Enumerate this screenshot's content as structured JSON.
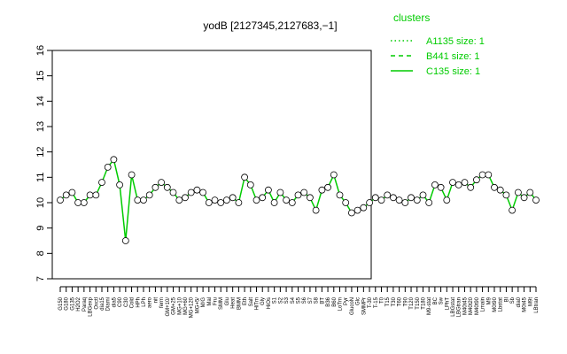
{
  "chart_data": {
    "type": "line",
    "title": "yodB [2127345,2127683,−1]",
    "xlabel": "",
    "ylabel": "",
    "ylim": [
      7,
      16
    ],
    "yticks": [
      7,
      8,
      9,
      10,
      11,
      12,
      13,
      14,
      15,
      16
    ],
    "grid": false,
    "legend": {
      "title": "clusters",
      "placement": "top-right",
      "entries": [
        {
          "label": "A1135 size: 1",
          "style": "dotted"
        },
        {
          "label": "B441 size: 1",
          "style": "dashed"
        },
        {
          "label": "C135 size: 1",
          "style": "solid"
        }
      ]
    },
    "line_color": "#00cc00",
    "x_tick_labels": [
      "G150",
      "G180",
      "G135",
      "H2O2",
      "Paraq",
      "LBGexp",
      "Oxctl",
      "dia15",
      "Diami",
      "dia5",
      "C90",
      "C30",
      "Cold",
      "HPh",
      "LPh",
      "aero",
      "nit",
      "ferm",
      "GM+10/",
      "GM+25",
      "MG+10",
      "MG+60",
      "MG+120",
      "MG+5/",
      "M/G",
      "Mal",
      "Fru",
      "SMM",
      "Glu",
      "Heat",
      "BMM",
      "Eth",
      "Salt",
      "HiTm",
      "Gly",
      "HiOs",
      "S1",
      "S2",
      "S3",
      "S4",
      "S5",
      "S6",
      "S7",
      "S8",
      "BT",
      "B36",
      "B60",
      "LoTm",
      "Pyr",
      "GlucoN",
      "Glc",
      "SMMPr",
      "T-30",
      "T-15",
      "T0",
      "T15",
      "T30",
      "T60",
      "T90",
      "T120",
      "T150",
      "T180",
      "M9-stat",
      "BC",
      "Sw",
      "LPhT",
      "LBGstat",
      "LBGtran",
      "M40t45",
      "M40t20",
      "M40t90",
      "Lmain",
      "M9",
      "M0t90",
      "Lbstat",
      "Bl",
      "Sb",
      "dia0",
      "M0t45",
      "M9t",
      "LBtran"
    ],
    "points": [
      {
        "label": "G150",
        "value": 10.1
      },
      {
        "label": "G180",
        "value": 10.3
      },
      {
        "label": "G135",
        "value": 10.4
      },
      {
        "label": "H2O2",
        "value": 10.0
      },
      {
        "label": "Paraq",
        "value": 10.0
      },
      {
        "label": "LBGexp",
        "value": 10.3
      },
      {
        "label": "Oxctl",
        "value": 10.3
      },
      {
        "label": "dia15",
        "value": 10.8
      },
      {
        "label": "Diami",
        "value": 11.4
      },
      {
        "label": "dia5",
        "value": 11.7
      },
      {
        "label": "C90",
        "value": 10.7
      },
      {
        "label": "C30",
        "value": 8.5
      },
      {
        "label": "Cold",
        "value": 11.1
      },
      {
        "label": "HPh",
        "value": 10.1
      },
      {
        "label": "LPh",
        "value": 10.1
      },
      {
        "label": "aero",
        "value": 10.3
      },
      {
        "label": "nit",
        "value": 10.6
      },
      {
        "label": "ferm",
        "value": 10.8
      },
      {
        "label": "GM+10/",
        "value": 10.6
      },
      {
        "label": "GM+25",
        "value": 10.4
      },
      {
        "label": "MG+10",
        "value": 10.1
      },
      {
        "label": "MG+60",
        "value": 10.2
      },
      {
        "label": "MG+120",
        "value": 10.4
      },
      {
        "label": "MG+5/",
        "value": 10.5
      },
      {
        "label": "M/G",
        "value": 10.4
      },
      {
        "label": "Mal",
        "value": 10.0
      },
      {
        "label": "Fru",
        "value": 10.1
      },
      {
        "label": "SMM",
        "value": 10.0
      },
      {
        "label": "Glu",
        "value": 10.1
      },
      {
        "label": "Heat",
        "value": 10.2
      },
      {
        "label": "BMM",
        "value": 10.0
      },
      {
        "label": "Eth",
        "value": 11.0
      },
      {
        "label": "Salt",
        "value": 10.7
      },
      {
        "label": "HiTm",
        "value": 10.1
      },
      {
        "label": "Gly",
        "value": 10.2
      },
      {
        "label": "HiOs",
        "value": 10.5
      },
      {
        "label": "S1",
        "value": 10.0
      },
      {
        "label": "S2",
        "value": 10.4
      },
      {
        "label": "S3",
        "value": 10.1
      },
      {
        "label": "S4",
        "value": 10.0
      },
      {
        "label": "S5",
        "value": 10.3
      },
      {
        "label": "S6",
        "value": 10.4
      },
      {
        "label": "S7",
        "value": 10.2
      },
      {
        "label": "S8",
        "value": 9.7
      },
      {
        "label": "BT",
        "value": 10.5
      },
      {
        "label": "B36",
        "value": 10.6
      },
      {
        "label": "B60",
        "value": 11.1
      },
      {
        "label": "LoTm",
        "value": 10.3
      },
      {
        "label": "Pyr",
        "value": 10.0
      },
      {
        "label": "GlucoN",
        "value": 9.6
      },
      {
        "label": "Glc",
        "value": 9.7
      },
      {
        "label": "SMMPr",
        "value": 9.8
      },
      {
        "label": "T-30",
        "value": 10.0
      },
      {
        "label": "T-15",
        "value": 10.2
      },
      {
        "label": "T0",
        "value": 10.1
      },
      {
        "label": "T15",
        "value": 10.3
      },
      {
        "label": "T30",
        "value": 10.2
      },
      {
        "label": "T60",
        "value": 10.1
      },
      {
        "label": "T90",
        "value": 10.0
      },
      {
        "label": "T120",
        "value": 10.2
      },
      {
        "label": "T150",
        "value": 10.1
      },
      {
        "label": "T180",
        "value": 10.3
      },
      {
        "label": "M9-stat",
        "value": 10.0
      },
      {
        "label": "BC",
        "value": 10.7
      },
      {
        "label": "Sw",
        "value": 10.6
      },
      {
        "label": "LPhT",
        "value": 10.1
      },
      {
        "label": "LBGstat",
        "value": 10.8
      },
      {
        "label": "LBGtran",
        "value": 10.7
      },
      {
        "label": "M40t45",
        "value": 10.8
      },
      {
        "label": "M40t20",
        "value": 10.6
      },
      {
        "label": "M40t90",
        "value": 10.9
      },
      {
        "label": "Lmain",
        "value": 11.1
      },
      {
        "label": "M9",
        "value": 11.1
      },
      {
        "label": "M0t90",
        "value": 10.6
      },
      {
        "label": "Lbstat",
        "value": 10.5
      },
      {
        "label": "Bl",
        "value": 10.3
      },
      {
        "label": "Sb",
        "value": 9.7
      },
      {
        "label": "dia0",
        "value": 10.4
      },
      {
        "label": "M0t45",
        "value": 10.2
      },
      {
        "label": "M9t",
        "value": 10.4
      },
      {
        "label": "LBtran",
        "value": 10.1
      }
    ]
  }
}
